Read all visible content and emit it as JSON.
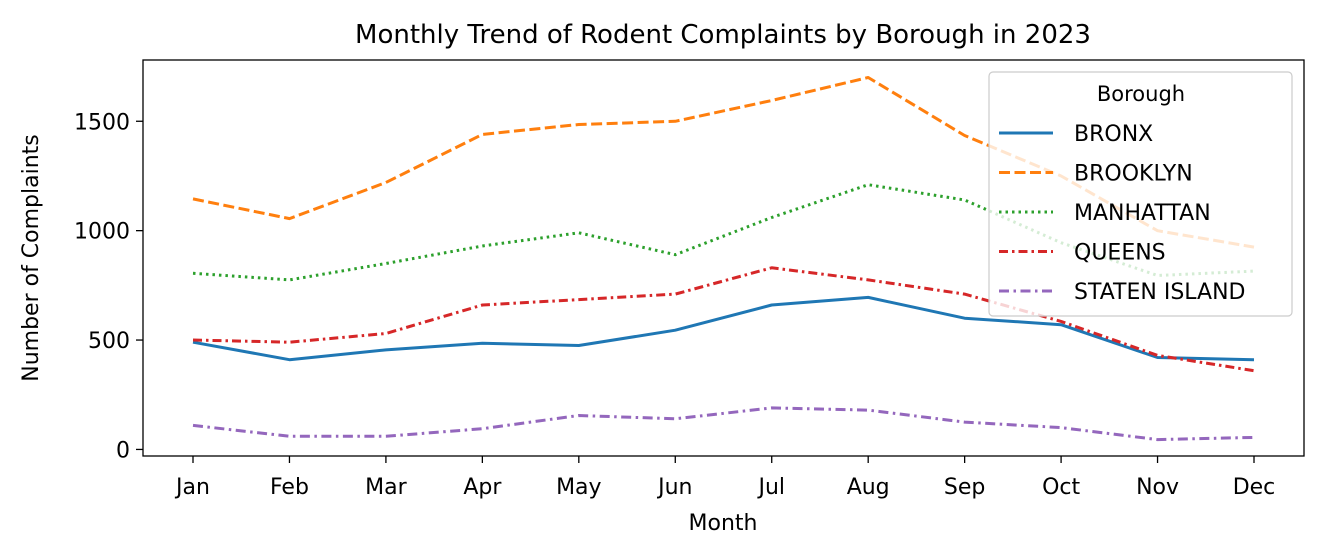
{
  "chart_data": {
    "type": "line",
    "title": "Monthly Trend of Rodent Complaints by Borough in 2023",
    "xlabel": "Month",
    "ylabel": "Number of Complaints",
    "categories": [
      "Jan",
      "Feb",
      "Mar",
      "Apr",
      "May",
      "Jun",
      "Jul",
      "Aug",
      "Sep",
      "Oct",
      "Nov",
      "Dec"
    ],
    "ylim": [
      -30,
      1780
    ],
    "yticks": [
      0,
      500,
      1000,
      1500
    ],
    "grid": false,
    "legend": {
      "title": "Borough",
      "placement": "top-right"
    },
    "series": [
      {
        "name": "BRONX",
        "color": "#1f77b4",
        "dash": "solid",
        "values": [
          490,
          410,
          455,
          485,
          475,
          545,
          660,
          695,
          600,
          570,
          420,
          410
        ]
      },
      {
        "name": "BROOKLYN",
        "color": "#ff7f0e",
        "dash": "dashed",
        "values": [
          1145,
          1055,
          1220,
          1440,
          1485,
          1500,
          1595,
          1700,
          1435,
          1250,
          1000,
          925
        ]
      },
      {
        "name": "MANHATTAN",
        "color": "#2ca02c",
        "dash": "dotted",
        "values": [
          805,
          775,
          850,
          930,
          990,
          890,
          1060,
          1210,
          1140,
          945,
          795,
          815
        ]
      },
      {
        "name": "QUEENS",
        "color": "#d62728",
        "dash": "dashdotted",
        "values": [
          500,
          490,
          530,
          660,
          685,
          710,
          830,
          775,
          710,
          585,
          430,
          360
        ]
      },
      {
        "name": "STATEN ISLAND",
        "color": "#9467bd",
        "dash": "dashdot",
        "values": [
          110,
          60,
          60,
          95,
          155,
          140,
          190,
          180,
          125,
          100,
          45,
          55
        ]
      }
    ]
  }
}
